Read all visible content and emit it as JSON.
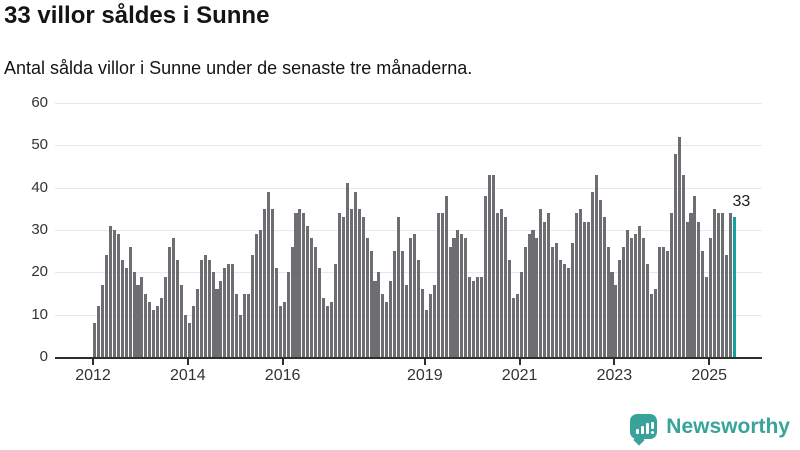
{
  "header": {
    "title": "33 villor såldes i Sunne",
    "subtitle": "Antal sålda villor i Sunne under de senaste tre månaderna."
  },
  "footer": {
    "brand": "Newsworthy"
  },
  "colors": {
    "bar": "#6e6e72",
    "accent_bar": "#18a0a0",
    "brand": "#38a39b",
    "grid": "#e8e8e8",
    "axis": "#2e2e2e",
    "text": "#141414",
    "tick_text": "#333333"
  },
  "chart_data": {
    "type": "bar",
    "title": "33 villor såldes i Sunne",
    "subtitle": "Antal sålda villor i Sunne under de senaste tre månaderna.",
    "x_start": "2012-01",
    "x_end": "2025-07",
    "frequency": "monthly-rolling-3-month-sum",
    "values": [
      8,
      12,
      17,
      24,
      31,
      30,
      29,
      23,
      21,
      26,
      20,
      17,
      19,
      15,
      13,
      11,
      12,
      14,
      19,
      26,
      28,
      23,
      17,
      10,
      8,
      12,
      16,
      23,
      24,
      23,
      20,
      16,
      18,
      21,
      22,
      22,
      15,
      10,
      15,
      15,
      24,
      29,
      30,
      35,
      39,
      35,
      21,
      12,
      13,
      20,
      26,
      34,
      35,
      34,
      31,
      28,
      26,
      21,
      14,
      12,
      13,
      22,
      34,
      33,
      41,
      35,
      39,
      35,
      33,
      28,
      25,
      18,
      20,
      15,
      13,
      18,
      25,
      33,
      25,
      17,
      28,
      29,
      23,
      16,
      11,
      15,
      17,
      34,
      34,
      38,
      26,
      28,
      30,
      29,
      28,
      19,
      18,
      19,
      19,
      38,
      43,
      43,
      34,
      35,
      33,
      23,
      14,
      15,
      20,
      26,
      29,
      30,
      28,
      35,
      32,
      34,
      26,
      27,
      23,
      22,
      21,
      27,
      34,
      35,
      32,
      32,
      39,
      43,
      37,
      33,
      26,
      20,
      17,
      23,
      26,
      30,
      28,
      29,
      31,
      28,
      22,
      15,
      16,
      26,
      26,
      25,
      34,
      48,
      52,
      43,
      32,
      34,
      38,
      32,
      25,
      19,
      28,
      35,
      34,
      34,
      24,
      34,
      33
    ],
    "highlight_last_value": 33,
    "last_value_label": "33",
    "ylim": [
      0,
      60
    ],
    "yticks": [
      "0",
      "10",
      "20",
      "30",
      "40",
      "50",
      "60"
    ],
    "xtick_labels": [
      "2012",
      "2014",
      "2016",
      "2019",
      "2021",
      "2023",
      "2025"
    ],
    "xtick_year_offsets": [
      0,
      2,
      4,
      7,
      9,
      11,
      13
    ],
    "grid": "horizontal",
    "legend": "none"
  }
}
